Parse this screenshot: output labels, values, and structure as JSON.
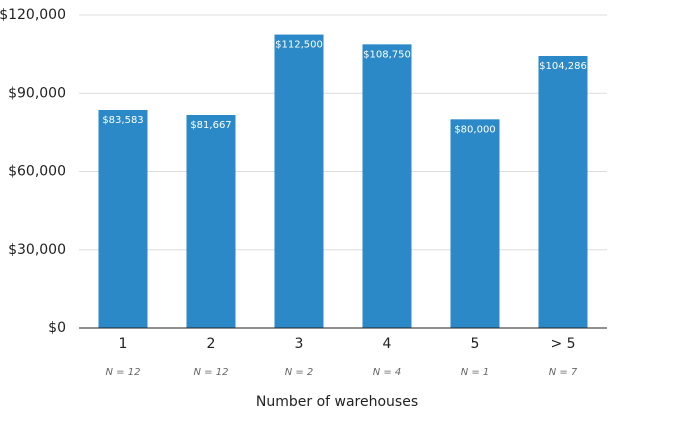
{
  "chart_data": {
    "type": "bar",
    "categories": [
      "1",
      "2",
      "3",
      "4",
      "5",
      "> 5"
    ],
    "category_notes": [
      "N = 12",
      "N = 12",
      "N = 2",
      "N = 4",
      "N = 1",
      "N = 7"
    ],
    "values": [
      83583,
      81667,
      112500,
      108750,
      80000,
      104286
    ],
    "value_labels": [
      "$83,583",
      "$81,667",
      "$112,500",
      "$108,750",
      "$80,000",
      "$104,286"
    ],
    "color": "#2a89c6",
    "x_label": "Number of warehouses",
    "ylim": [
      0,
      120000
    ],
    "yticks": [
      {
        "value": 0,
        "label": "$0"
      },
      {
        "value": 30000,
        "label": "$30,000"
      },
      {
        "value": 60000,
        "label": "$60,000"
      },
      {
        "value": 90000,
        "label": "$90,000"
      },
      {
        "value": 120000,
        "label": "$120,000"
      }
    ],
    "grid": true
  }
}
